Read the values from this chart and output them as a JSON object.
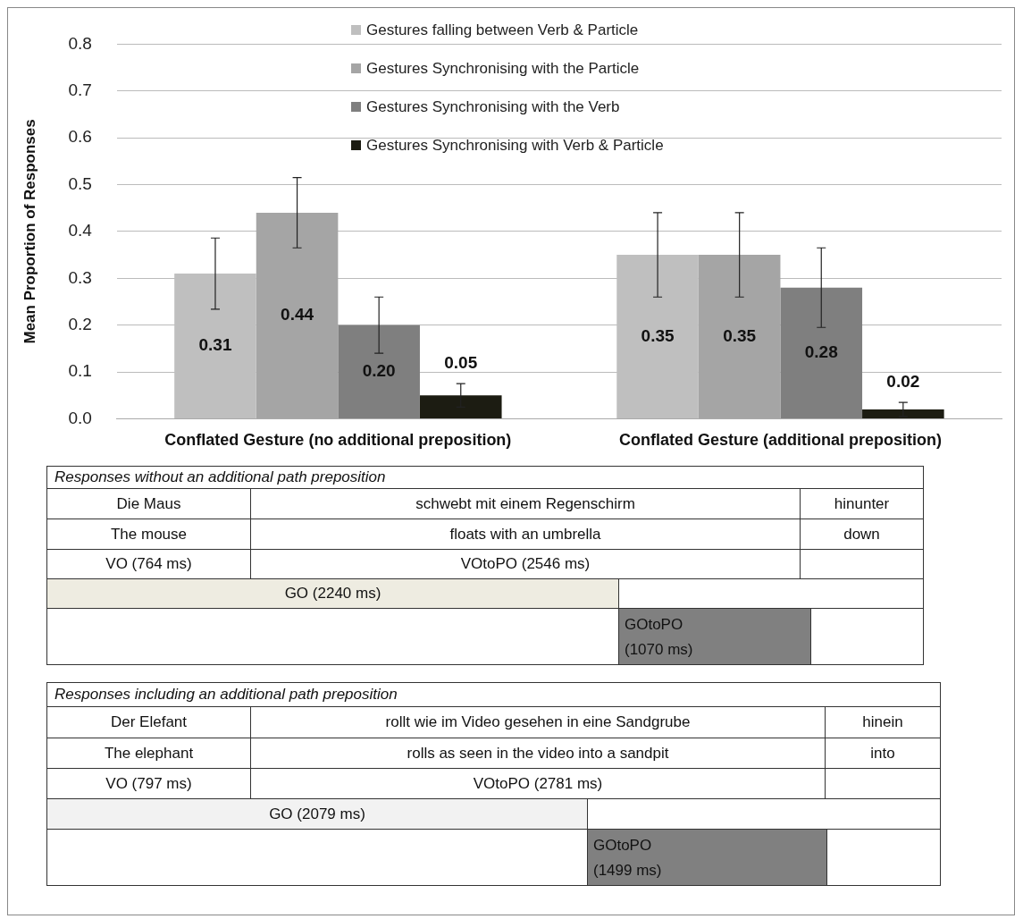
{
  "chart_data": [
    {
      "type": "bar",
      "ylabel": "Mean Proportion of Responses",
      "categories": [
        "Conflated Gesture (no additional preposition)",
        "Conflated Gesture (additional preposition)"
      ],
      "series": [
        {
          "name": "Gestures falling between Verb & Particle",
          "color": "#bfbfbf",
          "values": [
            0.31,
            0.35
          ],
          "errors": [
            0.076,
            0.09
          ],
          "value_labels": [
            "0.31",
            "0.35"
          ]
        },
        {
          "name": "Gestures Synchronising with the Particle",
          "color": "#a5a5a5",
          "values": [
            0.44,
            0.35
          ],
          "errors": [
            0.075,
            0.09
          ],
          "value_labels": [
            "0.44",
            "0.35"
          ]
        },
        {
          "name": "Gestures Synchronising with the Verb",
          "color": "#7f7f7f",
          "values": [
            0.2,
            0.28
          ],
          "errors": [
            0.06,
            0.085
          ],
          "value_labels": [
            "0.20",
            "0.28"
          ]
        },
        {
          "name": "Gestures Synchronising with Verb & Particle",
          "color": "#1c1c12",
          "values": [
            0.05,
            0.02
          ],
          "errors": [
            0.025,
            0.015
          ],
          "value_labels": [
            "0.05",
            "0.02"
          ]
        }
      ],
      "ylim": [
        0,
        0.8
      ],
      "yticks": [
        {
          "value": 0,
          "label": "0.0"
        },
        0.1,
        0.2,
        0.3,
        0.4,
        0.5,
        0.6,
        0.7,
        0.8
      ],
      "grid": "y",
      "legend": "top"
    },
    {
      "type": "other",
      "title": "Responses without an additional path preposition",
      "annotations": [
        "Die Maus",
        "schwebt mit einem Regenschirm",
        "hinunter",
        "The mouse",
        "floats with an umbrella",
        "down",
        "VO (764 ms)",
        "VOtoPO (2546 ms)",
        "GO (2240 ms)",
        "GOtoPO (1070 ms)"
      ]
    },
    {
      "type": "other",
      "title": "Responses including an additional path preposition",
      "annotations": [
        "Der Elefant",
        "rollt wie im Video gesehen in eine Sandgrube",
        "hinein",
        "The elephant",
        "rolls as seen in the video into a sandpit",
        "into",
        "VO (797 ms)",
        "VOtoPO (2781 ms)",
        "GO (2079 ms)",
        "GOtoPO (1499 ms)"
      ]
    }
  ]
}
